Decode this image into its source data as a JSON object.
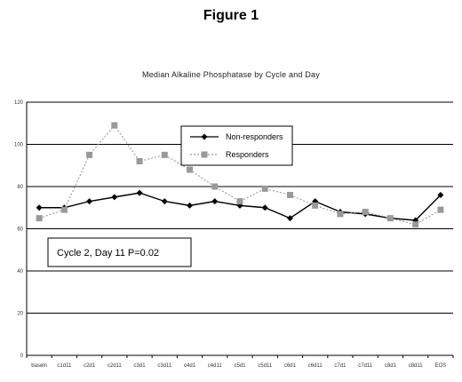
{
  "figure_title": "Figure 1",
  "chart_data": {
    "type": "line",
    "title": "Median Alkaline Phosphatase by Cycle and Day",
    "xlabel": "",
    "ylabel": "",
    "categories": [
      "baseln",
      "c1d11",
      "c2d1",
      "c2d11",
      "c3d1",
      "c3d11",
      "c4d1",
      "c4d11",
      "c5d1",
      "c5d11",
      "c6d1",
      "c6d11",
      "c7d1",
      "c7d11",
      "c8d1",
      "c8d11",
      "EOS"
    ],
    "ylim": [
      0,
      120
    ],
    "yticks": [
      0,
      20,
      40,
      60,
      80,
      100,
      120
    ],
    "grid": true,
    "legend_position": "top-center",
    "series": [
      {
        "name": "Non-responders",
        "color": "#000000",
        "marker": "diamond",
        "line_style": "solid",
        "values": [
          70,
          70,
          73,
          75,
          77,
          73,
          71,
          73,
          71,
          70,
          65,
          73,
          68,
          67,
          65,
          64,
          76
        ]
      },
      {
        "name": "Responders",
        "color": "#999999",
        "marker": "square",
        "line_style": "dashed",
        "values": [
          65,
          69,
          95,
          109,
          92,
          95,
          88,
          80,
          73,
          79,
          76,
          71,
          67,
          68,
          65,
          62,
          69
        ]
      }
    ],
    "annotation": "Cycle 2, Day 11 P=0.02"
  }
}
